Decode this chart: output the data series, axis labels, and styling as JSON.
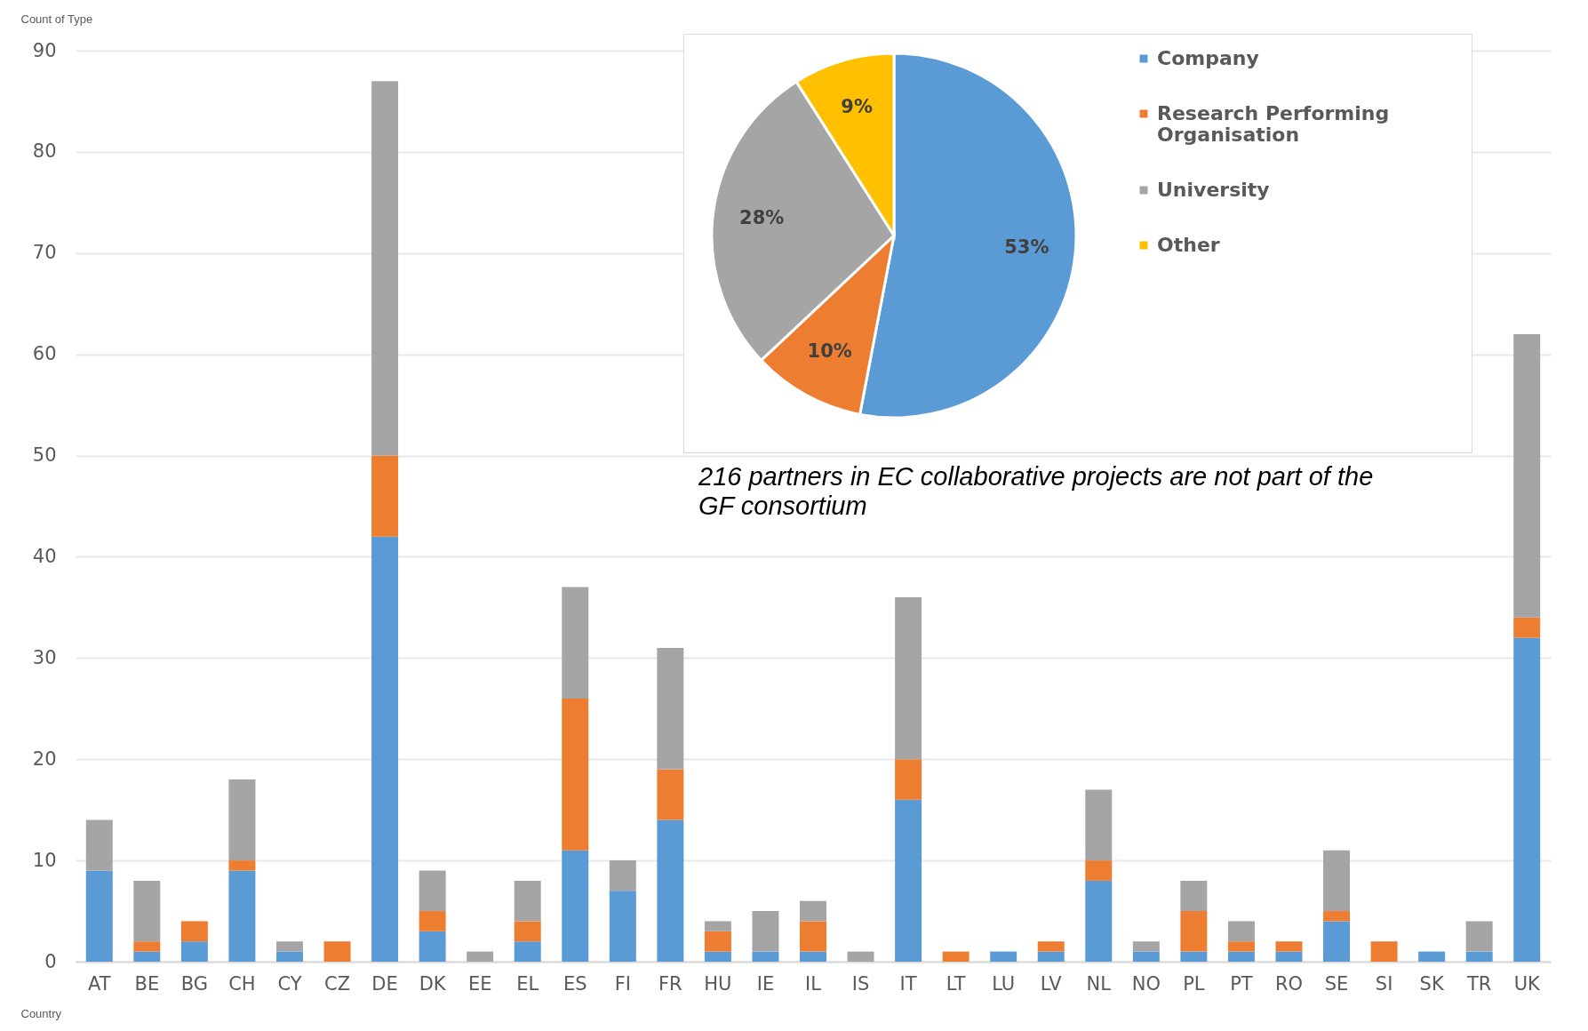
{
  "chart_data": [
    {
      "type": "bar",
      "stacked": true,
      "xlabel": "Country",
      "ylabel": "Count of Type",
      "categories": [
        "AT",
        "BE",
        "BG",
        "CH",
        "CY",
        "CZ",
        "DE",
        "DK",
        "EE",
        "EL",
        "ES",
        "FI",
        "FR",
        "HU",
        "IE",
        "IL",
        "IS",
        "IT",
        "LT",
        "LU",
        "LV",
        "NL",
        "NO",
        "PL",
        "PT",
        "RO",
        "SE",
        "SI",
        "SK",
        "TR",
        "UK"
      ],
      "series": [
        {
          "color": "#5b9bd5",
          "values": [
            9,
            1,
            2,
            9,
            1,
            0,
            42,
            3,
            0,
            2,
            11,
            7,
            14,
            1,
            1,
            1,
            0,
            16,
            0,
            1,
            1,
            8,
            1,
            1,
            1,
            1,
            4,
            0,
            1,
            1,
            32
          ]
        },
        {
          "color": "#ed7d31",
          "values": [
            0,
            1,
            2,
            1,
            0,
            2,
            8,
            2,
            0,
            2,
            15,
            0,
            5,
            2,
            0,
            3,
            0,
            4,
            1,
            0,
            1,
            2,
            0,
            4,
            1,
            1,
            1,
            2,
            0,
            0,
            2
          ]
        },
        {
          "color": "#a5a5a5",
          "values": [
            5,
            6,
            0,
            8,
            1,
            0,
            37,
            4,
            1,
            4,
            11,
            3,
            12,
            1,
            4,
            2,
            1,
            16,
            0,
            0,
            0,
            7,
            1,
            3,
            2,
            0,
            6,
            0,
            0,
            3,
            28
          ]
        }
      ],
      "ylim": [
        0,
        90
      ],
      "yticks": [
        0,
        10,
        20,
        30,
        40,
        50,
        60,
        70,
        80,
        90
      ],
      "grid": "y",
      "legend": false
    },
    {
      "type": "pie",
      "categories": [
        "Company",
        "Research Performing Organisation",
        "University",
        "Other"
      ],
      "values": [
        53,
        10,
        28,
        9
      ],
      "colors": [
        "#5b9bd5",
        "#ed7d31",
        "#a5a5a5",
        "#ffc000"
      ],
      "value_labels": [
        "53%",
        "10%",
        "28%",
        "9%"
      ],
      "legend": "right",
      "annotations": [
        "216 partners in EC collaborative projects are not part of the GF consortium"
      ]
    }
  ]
}
